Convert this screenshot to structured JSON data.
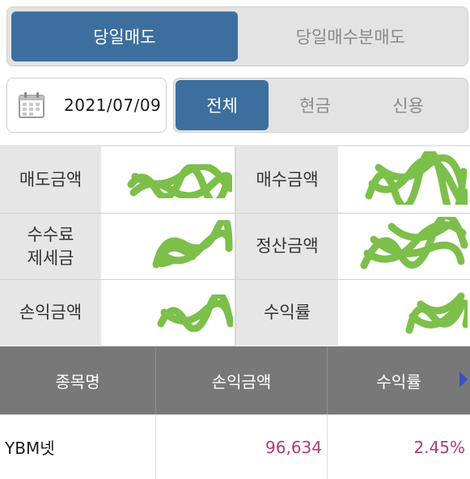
{
  "top_tabs": {
    "active": "당일매도",
    "other": "당일매수분매도"
  },
  "date": {
    "value": "2021/07/09"
  },
  "filter": {
    "all": "전체",
    "cash": "현금",
    "credit": "신용"
  },
  "summary": {
    "sell_amount_label": "매도금액",
    "buy_amount_label": "매수금액",
    "fees_label_line1": "수수료",
    "fees_label_line2": "제세금",
    "settlement_label": "정산금액",
    "pnl_label": "손익금액",
    "return_label": "수익률"
  },
  "table": {
    "headers": [
      "종목명",
      "손익금액",
      "수익률"
    ],
    "rows": [
      {
        "name": "YBM넷",
        "pnl": "96,634",
        "return": "2.45%"
      }
    ]
  },
  "colors": {
    "accent": "#3d6f9e",
    "header_bg": "#787878",
    "profit": "#b03a7c",
    "redaction": "#7cbf4a"
  }
}
